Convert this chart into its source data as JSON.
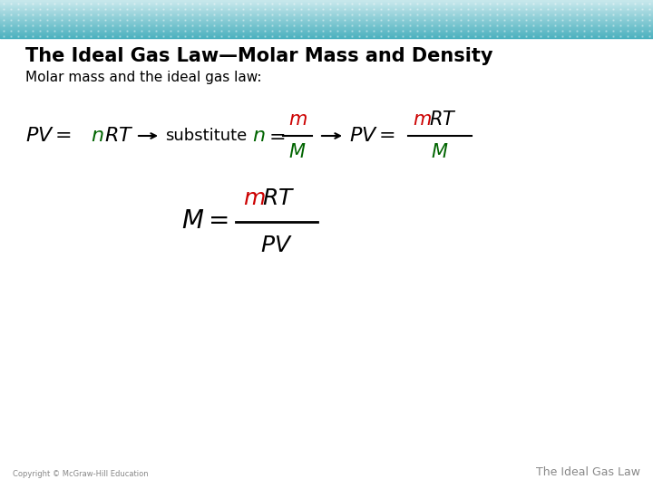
{
  "title": "The Ideal Gas Law—Molar Mass and Density",
  "subtitle": "Molar mass and the ideal gas law:",
  "bg_color": "#ffffff",
  "title_color": "#000000",
  "subtitle_color": "#000000",
  "black": "#000000",
  "red": "#cc0000",
  "dark_green": "#006400",
  "footer_left": "Copyright © McGraw-Hill Education",
  "footer_right": "The Ideal Gas Law",
  "footer_color": "#888888",
  "header_teal": "#5ab5bf",
  "header_light": "#b0d8dc"
}
